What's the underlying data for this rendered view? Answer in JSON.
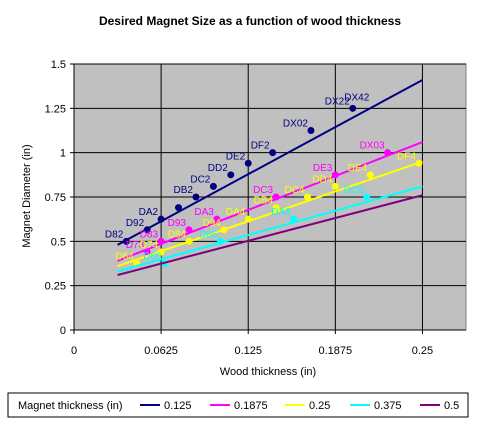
{
  "chart_data": {
    "type": "line",
    "title": "Desired Magnet Size as a function of wood thickness",
    "xlabel": "Wood thickness (in)",
    "ylabel": "Magnet Diameter (in)",
    "xlim": [
      0,
      0.28125
    ],
    "ylim": [
      0,
      1.5
    ],
    "x_ticks": [
      "0",
      "0.0625",
      "0.125",
      "0.1875",
      "0.25"
    ],
    "x_tick_values": [
      0,
      0.0625,
      0.125,
      0.1875,
      0.25
    ],
    "y_ticks": [
      "0",
      "0.25",
      "0.5",
      "0.75",
      "1",
      "1.25",
      "1.5"
    ],
    "y_tick_values": [
      0,
      0.25,
      0.5,
      0.75,
      1,
      1.25,
      1.5
    ],
    "grid": true,
    "plot_background": "#c0c0c0",
    "legend_title": "Magnet thickness (in)",
    "legend_position": "bottom",
    "series": [
      {
        "name": "0.125",
        "color": "#000080",
        "line": {
          "x": [
            0.03125,
            0.25
          ],
          "y": [
            0.48,
            1.41
          ]
        },
        "points": [
          {
            "x": 0.0375,
            "y": 0.5,
            "label": "D82"
          },
          {
            "x": 0.0525,
            "y": 0.565,
            "label": "D92"
          },
          {
            "x": 0.0625,
            "y": 0.625,
            "label": "DA2"
          },
          {
            "x": 0.075,
            "y": 0.69,
            "label": ""
          },
          {
            "x": 0.0875,
            "y": 0.75,
            "label": "DB2"
          },
          {
            "x": 0.1,
            "y": 0.81,
            "label": "DC2"
          },
          {
            "x": 0.1125,
            "y": 0.875,
            "label": "DD2"
          },
          {
            "x": 0.125,
            "y": 0.94,
            "label": "DE2"
          },
          {
            "x": 0.1425,
            "y": 1.0,
            "label": "DF2"
          },
          {
            "x": 0.17,
            "y": 1.125,
            "label": "DX02"
          },
          {
            "x": 0.2,
            "y": 1.25,
            "label": "DX22"
          }
        ],
        "extra_labels": [
          {
            "x": 0.2,
            "y": 1.25,
            "label": "DX42"
          }
        ],
        "label_color": "#000080"
      },
      {
        "name": "0.1875",
        "color": "#ff00ff",
        "line": {
          "x": [
            0.03125,
            0.25
          ],
          "y": [
            0.39,
            1.06
          ]
        },
        "points": [
          {
            "x": 0.0525,
            "y": 0.44,
            "label": "D73"
          },
          {
            "x": 0.0625,
            "y": 0.5,
            "label": "D83"
          },
          {
            "x": 0.0825,
            "y": 0.565,
            "label": "D93"
          },
          {
            "x": 0.1025,
            "y": 0.625,
            "label": "DA3"
          },
          {
            "x": 0.145,
            "y": 0.75,
            "label": "DC3"
          },
          {
            "x": 0.1875,
            "y": 0.875,
            "label": "DE3"
          },
          {
            "x": 0.225,
            "y": 1.0,
            "label": "DX03"
          }
        ],
        "label_color": "#ff00ff"
      },
      {
        "name": "0.25",
        "color": "#ffff00",
        "line": {
          "x": [
            0.03125,
            0.25
          ],
          "y": [
            0.36,
            0.95
          ]
        },
        "points": [
          {
            "x": 0.045,
            "y": 0.375,
            "label": "D64"
          },
          {
            "x": 0.0625,
            "y": 0.44,
            "label": "D74"
          },
          {
            "x": 0.0825,
            "y": 0.5,
            "label": "D84"
          },
          {
            "x": 0.1075,
            "y": 0.565,
            "label": "D94"
          },
          {
            "x": 0.125,
            "y": 0.625,
            "label": "DA4"
          },
          {
            "x": 0.145,
            "y": 0.69,
            "label": "DB4"
          },
          {
            "x": 0.1675,
            "y": 0.75,
            "label": "DC4"
          },
          {
            "x": 0.1875,
            "y": 0.81,
            "label": "DD4"
          },
          {
            "x": 0.2125,
            "y": 0.875,
            "label": "DE4"
          },
          {
            "x": 0.2475,
            "y": 0.94,
            "label": "DF4"
          }
        ],
        "label_color": "#ffff00"
      },
      {
        "name": "0.375",
        "color": "#00ffff",
        "line": {
          "x": [
            0.03125,
            0.25
          ],
          "y": [
            0.33,
            0.81
          ]
        },
        "points": [
          {
            "x": 0.065,
            "y": 0.375,
            "label": "D66"
          },
          {
            "x": 0.105,
            "y": 0.5,
            "label": "D86"
          },
          {
            "x": 0.1575,
            "y": 0.625,
            "label": "DA6"
          },
          {
            "x": 0.21,
            "y": 0.75,
            "label": "DC6"
          }
        ],
        "label_color": "#00ffff"
      },
      {
        "name": "0.5",
        "color": "#800080",
        "line": {
          "x": [
            0.03125,
            0.25
          ],
          "y": [
            0.31,
            0.76
          ]
        },
        "points": [],
        "label_color": "#800080"
      }
    ]
  }
}
